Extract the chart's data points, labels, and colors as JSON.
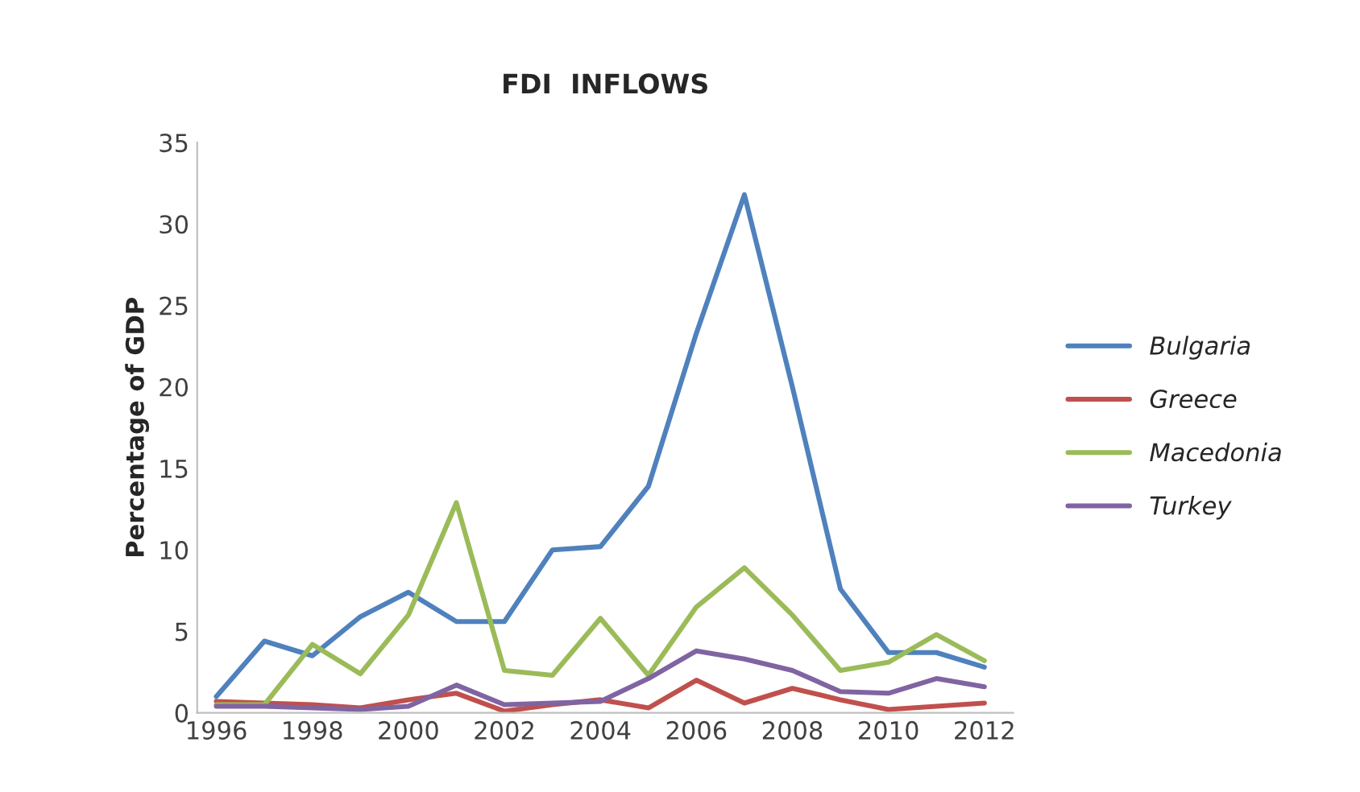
{
  "chart_data": {
    "type": "line",
    "title": "FDI  INFLOWS",
    "ylabel": "Percentage of GDP",
    "x": [
      1996,
      1997,
      1998,
      1999,
      2000,
      2001,
      2002,
      2003,
      2004,
      2005,
      2006,
      2007,
      2008,
      2009,
      2010,
      2011,
      2012
    ],
    "series": [
      {
        "name": "Bulgaria",
        "color": "#4f81bd",
        "values": [
          1.0,
          4.4,
          3.5,
          5.9,
          7.4,
          5.6,
          5.6,
          10.0,
          10.2,
          13.9,
          23.3,
          31.8,
          20.0,
          7.6,
          3.7,
          3.7,
          2.8
        ]
      },
      {
        "name": "Greece",
        "color": "#c0504d",
        "values": [
          0.7,
          0.6,
          0.5,
          0.3,
          0.8,
          1.2,
          0.1,
          0.5,
          0.8,
          0.3,
          2.0,
          0.6,
          1.5,
          0.8,
          0.2,
          0.4,
          0.6
        ]
      },
      {
        "name": "Macedonia",
        "color": "#9bbb59",
        "values": [
          0.5,
          0.5,
          4.2,
          2.4,
          6.0,
          12.9,
          2.6,
          2.3,
          5.8,
          2.3,
          6.5,
          8.9,
          6.0,
          2.6,
          3.1,
          4.8,
          3.2
        ]
      },
      {
        "name": "Turkey",
        "color": "#8064a2",
        "values": [
          0.4,
          0.4,
          0.3,
          0.2,
          0.4,
          1.7,
          0.5,
          0.6,
          0.7,
          2.1,
          3.8,
          3.3,
          2.6,
          1.3,
          1.2,
          2.1,
          1.6
        ]
      }
    ],
    "xlim": [
      1995.6,
      2012.6
    ],
    "xticks": [
      1996,
      1998,
      2000,
      2002,
      2004,
      2006,
      2008,
      2010,
      2012
    ],
    "ylim": [
      0,
      35
    ],
    "yticks": [
      0,
      5,
      10,
      15,
      20,
      25,
      30,
      35
    ],
    "grid": false,
    "legend": "right",
    "marker": "none",
    "line_style": "solid"
  }
}
